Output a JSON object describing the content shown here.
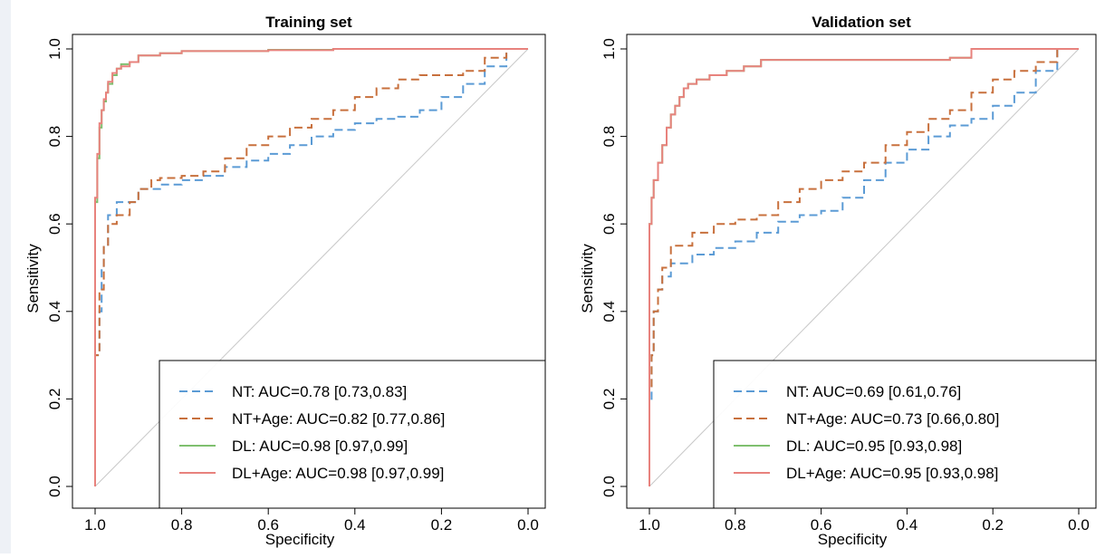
{
  "chart_data": [
    {
      "type": "line",
      "title": "Training set",
      "xlabel": "Specificity",
      "ylabel": "Sensitivity",
      "xlim": [
        1.0,
        0.0
      ],
      "ylim": [
        0.0,
        1.0
      ],
      "x_reversed": true,
      "xticks": [
        "1.0",
        "0.8",
        "0.6",
        "0.4",
        "0.2",
        "0.0"
      ],
      "yticks": [
        "0.0",
        "0.2",
        "0.4",
        "0.6",
        "0.8",
        "1.0"
      ],
      "legend_position": "bottom-right",
      "diagonal_reference": true,
      "series": [
        {
          "name": "NT: AUC=0.78 [0.73,0.83]",
          "color": "#5b9bd5",
          "dash": "dashed",
          "x": [
            1.0,
            0.99,
            0.985,
            0.98,
            0.97,
            0.95,
            0.9,
            0.85,
            0.8,
            0.75,
            0.7,
            0.65,
            0.6,
            0.55,
            0.5,
            0.45,
            0.4,
            0.35,
            0.3,
            0.25,
            0.2,
            0.15,
            0.1,
            0.05,
            0.0
          ],
          "y": [
            0.0,
            0.3,
            0.4,
            0.5,
            0.55,
            0.62,
            0.65,
            0.68,
            0.69,
            0.7,
            0.71,
            0.73,
            0.745,
            0.76,
            0.78,
            0.8,
            0.815,
            0.83,
            0.84,
            0.845,
            0.86,
            0.89,
            0.92,
            0.96,
            1.0
          ]
        },
        {
          "name": "NT+Age: AUC=0.82 [0.77,0.86]",
          "color": "#c8703d",
          "dash": "dashed",
          "x": [
            1.0,
            0.99,
            0.98,
            0.97,
            0.95,
            0.92,
            0.9,
            0.87,
            0.85,
            0.8,
            0.75,
            0.7,
            0.65,
            0.6,
            0.55,
            0.5,
            0.45,
            0.4,
            0.35,
            0.3,
            0.25,
            0.2,
            0.15,
            0.1,
            0.05,
            0.0
          ],
          "y": [
            0.0,
            0.3,
            0.45,
            0.55,
            0.6,
            0.62,
            0.65,
            0.68,
            0.7,
            0.705,
            0.71,
            0.72,
            0.75,
            0.78,
            0.8,
            0.82,
            0.84,
            0.86,
            0.89,
            0.91,
            0.93,
            0.94,
            0.94,
            0.95,
            0.98,
            1.0
          ]
        },
        {
          "name": "DL: AUC=0.98 [0.97,0.99]",
          "color": "#7fbf6f",
          "dash": "solid",
          "x": [
            1.0,
            1.0,
            0.995,
            0.99,
            0.985,
            0.98,
            0.975,
            0.97,
            0.96,
            0.95,
            0.94,
            0.92,
            0.9,
            0.85,
            0.8,
            0.6,
            0.45,
            0.4,
            0.2,
            0.0
          ],
          "y": [
            0.0,
            0.5,
            0.65,
            0.75,
            0.82,
            0.86,
            0.88,
            0.9,
            0.92,
            0.94,
            0.955,
            0.965,
            0.97,
            0.985,
            0.99,
            0.995,
            0.998,
            1.0,
            1.0,
            1.0
          ]
        },
        {
          "name": "DL+Age: AUC=0.98 [0.97,0.99]",
          "color": "#e8827d",
          "dash": "solid",
          "x": [
            1.0,
            1.0,
            0.995,
            0.99,
            0.985,
            0.98,
            0.975,
            0.97,
            0.96,
            0.95,
            0.94,
            0.92,
            0.9,
            0.85,
            0.8,
            0.6,
            0.45,
            0.4,
            0.2,
            0.0
          ],
          "y": [
            0.0,
            0.5,
            0.66,
            0.76,
            0.83,
            0.86,
            0.885,
            0.9,
            0.925,
            0.945,
            0.955,
            0.96,
            0.97,
            0.985,
            0.99,
            0.995,
            0.997,
            1.0,
            1.0,
            1.0
          ]
        }
      ]
    },
    {
      "type": "line",
      "title": "Validation set",
      "xlabel": "Specificity",
      "ylabel": "Sensitivity",
      "xlim": [
        1.0,
        0.0
      ],
      "ylim": [
        0.0,
        1.0
      ],
      "x_reversed": true,
      "xticks": [
        "1.0",
        "0.8",
        "0.6",
        "0.4",
        "0.2",
        "0.0"
      ],
      "yticks": [
        "0.0",
        "0.2",
        "0.4",
        "0.6",
        "0.8",
        "1.0"
      ],
      "legend_position": "bottom-right",
      "diagonal_reference": true,
      "series": [
        {
          "name": "NT: AUC=0.69 [0.61,0.76]",
          "color": "#5b9bd5",
          "dash": "dashed",
          "x": [
            1.0,
            0.995,
            0.99,
            0.98,
            0.97,
            0.95,
            0.9,
            0.85,
            0.8,
            0.75,
            0.7,
            0.65,
            0.6,
            0.55,
            0.5,
            0.45,
            0.4,
            0.35,
            0.3,
            0.25,
            0.2,
            0.15,
            0.1,
            0.05,
            0.0
          ],
          "y": [
            0.0,
            0.2,
            0.3,
            0.4,
            0.45,
            0.48,
            0.51,
            0.53,
            0.545,
            0.56,
            0.58,
            0.605,
            0.62,
            0.63,
            0.66,
            0.7,
            0.74,
            0.77,
            0.8,
            0.825,
            0.84,
            0.87,
            0.9,
            0.95,
            1.0
          ]
        },
        {
          "name": "NT+Age: AUC=0.73 [0.66,0.80]",
          "color": "#c8703d",
          "dash": "dashed",
          "x": [
            1.0,
            0.995,
            0.99,
            0.98,
            0.97,
            0.95,
            0.9,
            0.85,
            0.8,
            0.75,
            0.7,
            0.65,
            0.6,
            0.55,
            0.5,
            0.45,
            0.4,
            0.35,
            0.3,
            0.25,
            0.2,
            0.15,
            0.1,
            0.05,
            0.0
          ],
          "y": [
            0.0,
            0.22,
            0.3,
            0.4,
            0.45,
            0.5,
            0.55,
            0.58,
            0.6,
            0.61,
            0.62,
            0.65,
            0.68,
            0.7,
            0.72,
            0.74,
            0.78,
            0.81,
            0.84,
            0.86,
            0.9,
            0.93,
            0.95,
            0.97,
            1.0
          ]
        },
        {
          "name": "DL: AUC=0.95 [0.93,0.98]",
          "color": "#7fbf6f",
          "dash": "solid",
          "x": [
            1.0,
            1.0,
            0.995,
            0.99,
            0.98,
            0.97,
            0.96,
            0.95,
            0.94,
            0.93,
            0.92,
            0.91,
            0.89,
            0.86,
            0.82,
            0.78,
            0.74,
            0.7,
            0.5,
            0.3,
            0.25,
            0.2,
            0.1,
            0.0
          ],
          "y": [
            0.0,
            0.55,
            0.6,
            0.66,
            0.7,
            0.74,
            0.78,
            0.82,
            0.85,
            0.87,
            0.89,
            0.91,
            0.92,
            0.93,
            0.94,
            0.95,
            0.96,
            0.975,
            0.975,
            0.975,
            0.98,
            1.0,
            1.0,
            1.0
          ]
        },
        {
          "name": "DL+Age: AUC=0.95 [0.93,0.98]",
          "color": "#e8827d",
          "dash": "solid",
          "x": [
            1.0,
            1.0,
            0.995,
            0.99,
            0.98,
            0.97,
            0.96,
            0.95,
            0.94,
            0.93,
            0.92,
            0.91,
            0.89,
            0.86,
            0.82,
            0.78,
            0.74,
            0.7,
            0.5,
            0.3,
            0.25,
            0.2,
            0.1,
            0.0
          ],
          "y": [
            0.0,
            0.55,
            0.6,
            0.66,
            0.7,
            0.74,
            0.78,
            0.82,
            0.85,
            0.87,
            0.89,
            0.91,
            0.92,
            0.93,
            0.94,
            0.95,
            0.96,
            0.975,
            0.975,
            0.975,
            0.98,
            1.0,
            1.0,
            1.0
          ]
        }
      ]
    }
  ]
}
